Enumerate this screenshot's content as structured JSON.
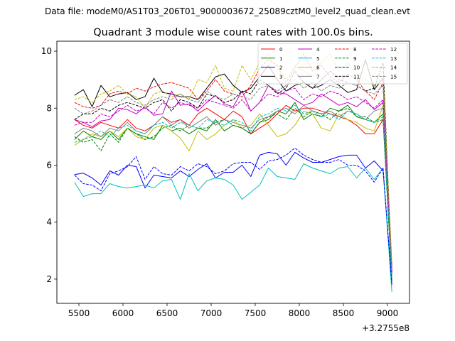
{
  "figure": {
    "suptitle": "Data file: modeM0/AS1T03_206T01_9000003672_25089cztM0_level2_quad_clean.evt",
    "title": "Quadrant 3 module wise count rates with 100.0s bins."
  },
  "chart_data": {
    "type": "line",
    "title": "Quadrant 3 module wise count rates with 100.0s bins.",
    "xlabel": "",
    "ylabel": "",
    "x_offset_label": "+3.2755e8",
    "xlim": [
      5250,
      9250
    ],
    "ylim": [
      1.15,
      10.35
    ],
    "xticks": [
      5500,
      6000,
      6500,
      7000,
      7500,
      8000,
      8500,
      9000
    ],
    "yticks": [
      2,
      4,
      6,
      8,
      10
    ],
    "grid": false,
    "legend_position": "top-right",
    "legend_columns": 4,
    "x": [
      5450,
      5550,
      5650,
      5750,
      5850,
      5950,
      6050,
      6150,
      6250,
      6350,
      6450,
      6550,
      6650,
      6750,
      6850,
      6950,
      7050,
      7150,
      7250,
      7350,
      7450,
      7550,
      7650,
      7750,
      7850,
      7950,
      8050,
      8150,
      8250,
      8350,
      8450,
      8550,
      8650,
      8750,
      8850,
      8950,
      9050
    ],
    "series": [
      {
        "name": "0",
        "color": "#ff0000",
        "dash": "solid",
        "values": [
          7.6,
          7.4,
          7.3,
          7.5,
          7.4,
          7.3,
          7.6,
          7.3,
          7.2,
          7.4,
          7.7,
          7.5,
          7.6,
          7.4,
          7.8,
          8.0,
          7.8,
          7.6,
          7.9,
          7.7,
          7.1,
          7.3,
          7.5,
          7.8,
          8.1,
          7.9,
          8.0,
          8.0,
          7.9,
          7.8,
          7.7,
          7.6,
          7.4,
          7.1,
          7.1,
          7.6,
          2.0
        ]
      },
      {
        "name": "1",
        "color": "#008000",
        "dash": "solid",
        "values": [
          6.9,
          7.2,
          7.0,
          6.9,
          7.2,
          6.9,
          7.3,
          7.1,
          7.0,
          6.9,
          7.4,
          7.2,
          7.3,
          7.1,
          7.3,
          7.2,
          7.6,
          7.2,
          7.4,
          7.3,
          7.1,
          7.5,
          7.6,
          7.9,
          7.8,
          8.2,
          7.6,
          7.8,
          7.7,
          8.0,
          7.9,
          8.1,
          7.7,
          7.6,
          7.5,
          7.8,
          1.9
        ]
      },
      {
        "name": "2",
        "color": "#0000ff",
        "dash": "solid",
        "values": [
          5.67,
          5.72,
          5.55,
          5.3,
          5.8,
          5.65,
          6.0,
          5.95,
          5.2,
          5.65,
          5.6,
          5.55,
          5.8,
          5.6,
          5.85,
          6.05,
          5.55,
          5.75,
          5.75,
          6.0,
          5.6,
          6.35,
          6.45,
          6.4,
          6.0,
          6.45,
          6.25,
          6.1,
          6.1,
          6.2,
          6.3,
          6.35,
          6.35,
          5.9,
          6.15,
          5.8,
          1.8
        ]
      },
      {
        "name": "3",
        "color": "#000000",
        "dash": "solid",
        "values": [
          8.45,
          8.65,
          8.05,
          8.8,
          8.4,
          8.5,
          8.55,
          8.3,
          8.4,
          9.05,
          8.55,
          8.5,
          8.4,
          8.4,
          8.3,
          8.7,
          9.1,
          9.2,
          8.8,
          8.55,
          8.7,
          9.1,
          9.5,
          9.0,
          8.6,
          8.8,
          8.9,
          8.7,
          8.8,
          9.0,
          8.8,
          8.55,
          8.65,
          9.7,
          8.65,
          9.05,
          2.4
        ]
      },
      {
        "name": "4",
        "color": "#bf00bf",
        "dash": "solid",
        "values": [
          7.6,
          7.5,
          7.35,
          7.55,
          7.6,
          8.0,
          7.95,
          7.8,
          8.05,
          7.75,
          7.8,
          8.6,
          8.1,
          8.15,
          7.9,
          8.2,
          8.45,
          8.15,
          8.05,
          8.6,
          7.9,
          8.2,
          8.8,
          8.55,
          8.5,
          8.3,
          8.1,
          8.2,
          8.5,
          8.3,
          8.1,
          8.2,
          8.05,
          8.3,
          7.95,
          8.2,
          2.3
        ]
      },
      {
        "name": "5",
        "color": "#00bfbf",
        "dash": "solid",
        "values": [
          5.4,
          4.9,
          5.0,
          5.0,
          5.35,
          5.25,
          5.2,
          5.25,
          5.3,
          5.2,
          5.45,
          5.5,
          4.8,
          5.7,
          5.1,
          5.45,
          5.55,
          5.5,
          5.3,
          4.8,
          5.05,
          5.3,
          5.9,
          5.6,
          5.55,
          5.5,
          6.05,
          5.9,
          5.8,
          5.7,
          5.9,
          5.95,
          5.55,
          5.9,
          5.5,
          5.9,
          1.55
        ]
      },
      {
        "name": "6",
        "color": "#bfbf00",
        "dash": "solid",
        "values": [
          6.7,
          6.9,
          7.1,
          7.0,
          7.2,
          7.0,
          7.3,
          7.0,
          6.9,
          7.3,
          7.4,
          7.2,
          6.95,
          6.5,
          7.2,
          6.9,
          7.1,
          7.4,
          7.6,
          7.3,
          7.4,
          7.8,
          7.4,
          7.0,
          7.1,
          7.4,
          7.9,
          7.8,
          7.3,
          7.2,
          7.8,
          7.6,
          7.5,
          7.3,
          7.2,
          8.1,
          2.0
        ]
      },
      {
        "name": "7",
        "color": "#808080",
        "dash": "solid",
        "values": [
          7.1,
          7.3,
          7.2,
          7.0,
          7.3,
          7.2,
          7.5,
          7.2,
          7.1,
          7.4,
          7.7,
          7.4,
          7.6,
          7.3,
          7.5,
          7.7,
          7.4,
          7.6,
          7.5,
          7.4,
          7.3,
          7.6,
          7.7,
          7.9,
          8.0,
          7.8,
          8.1,
          7.9,
          7.8,
          7.9,
          7.7,
          7.9,
          7.8,
          7.6,
          7.9,
          8.0,
          2.1
        ]
      },
      {
        "name": "8",
        "color": "#ff0000",
        "dash": "dashed",
        "values": [
          8.2,
          8.05,
          8.0,
          8.1,
          8.5,
          8.6,
          8.5,
          8.7,
          8.6,
          8.75,
          8.85,
          8.9,
          8.8,
          8.7,
          8.3,
          8.6,
          9.0,
          8.6,
          8.5,
          8.4,
          8.8,
          9.4,
          9.7,
          9.5,
          8.9,
          9.4,
          9.9,
          9.3,
          9.5,
          9.1,
          8.9,
          9.2,
          9.0,
          8.6,
          8.3,
          8.9,
          2.5
        ]
      },
      {
        "name": "9",
        "color": "#008000",
        "dash": "dashed",
        "values": [
          7.0,
          6.8,
          6.9,
          6.5,
          7.1,
          6.8,
          7.3,
          7.1,
          6.9,
          7.0,
          7.3,
          7.4,
          7.2,
          7.4,
          7.3,
          7.3,
          7.5,
          7.6,
          7.4,
          7.3,
          7.1,
          7.5,
          7.7,
          7.8,
          7.6,
          8.0,
          7.7,
          7.9,
          7.8,
          7.6,
          7.9,
          8.0,
          7.7,
          7.7,
          7.5,
          7.6,
          2.0
        ]
      },
      {
        "name": "10",
        "color": "#0000ff",
        "dash": "dashed",
        "values": [
          5.65,
          5.35,
          5.3,
          5.1,
          5.7,
          5.8,
          5.95,
          6.3,
          5.5,
          5.95,
          5.7,
          5.65,
          5.95,
          5.8,
          6.05,
          5.95,
          5.7,
          5.8,
          6.05,
          6.1,
          6.1,
          5.85,
          6.15,
          6.2,
          6.35,
          6.6,
          6.35,
          6.2,
          6.1,
          6.1,
          6.2,
          6.0,
          6.0,
          5.8,
          5.4,
          5.9,
          1.8
        ]
      },
      {
        "name": "11",
        "color": "#000000",
        "dash": "dashed",
        "values": [
          7.6,
          7.8,
          7.8,
          8.0,
          7.9,
          8.1,
          8.2,
          8.1,
          8.0,
          8.2,
          8.3,
          7.9,
          8.3,
          8.2,
          8.0,
          8.5,
          8.4,
          8.2,
          8.3,
          8.6,
          8.5,
          9.0,
          8.8,
          8.5,
          8.7,
          9.3,
          8.9,
          8.7,
          9.0,
          9.3,
          9.0,
          8.9,
          8.8,
          8.6,
          8.7,
          9.6,
          2.2
        ]
      },
      {
        "name": "12",
        "color": "#bf00bf",
        "dash": "dashed",
        "values": [
          7.4,
          7.5,
          7.5,
          7.8,
          7.7,
          7.9,
          8.1,
          7.9,
          8.0,
          7.8,
          8.2,
          8.0,
          8.2,
          8.1,
          8.0,
          8.3,
          8.2,
          8.1,
          8.0,
          8.3,
          7.9,
          8.2,
          8.5,
          8.4,
          8.6,
          8.7,
          8.3,
          8.5,
          8.4,
          8.6,
          8.5,
          8.3,
          8.4,
          8.2,
          8.0,
          8.3,
          2.3
        ]
      },
      {
        "name": "13",
        "color": "#00bfbf",
        "dash": "dashed",
        "values": [
          6.8,
          6.9,
          7.0,
          7.2,
          7.0,
          7.3,
          7.4,
          7.2,
          7.1,
          7.4,
          7.5,
          7.3,
          7.5,
          7.4,
          7.3,
          7.6,
          7.5,
          7.4,
          7.6,
          7.5,
          7.2,
          7.7,
          7.8,
          8.0,
          7.9,
          8.1,
          7.8,
          7.9,
          7.7,
          7.8,
          7.6,
          7.9,
          7.8,
          7.6,
          7.5,
          7.7,
          2.0
        ]
      },
      {
        "name": "14",
        "color": "#bfbf00",
        "dash": "dashed",
        "values": [
          8.3,
          8.4,
          8.2,
          8.5,
          8.6,
          8.8,
          8.5,
          8.4,
          8.0,
          8.5,
          8.6,
          8.4,
          8.5,
          8.3,
          9.0,
          8.9,
          9.5,
          8.7,
          8.6,
          9.5,
          9.0,
          9.6,
          9.9,
          9.4,
          9.0,
          9.5,
          9.3,
          9.1,
          9.6,
          9.9,
          9.3,
          9.6,
          9.2,
          9.0,
          8.8,
          9.1,
          2.6
        ]
      },
      {
        "name": "15",
        "color": "#808080",
        "dash": "dashed",
        "values": [
          8.0,
          7.8,
          7.9,
          8.1,
          8.3,
          8.2,
          8.4,
          8.2,
          8.1,
          8.3,
          8.4,
          8.3,
          8.5,
          8.3,
          8.2,
          8.6,
          8.4,
          8.3,
          8.5,
          8.4,
          8.3,
          8.7,
          8.8,
          8.6,
          8.8,
          9.0,
          8.7,
          8.9,
          8.6,
          8.8,
          8.7,
          8.9,
          8.8,
          8.6,
          8.5,
          8.8,
          2.3
        ]
      }
    ]
  }
}
